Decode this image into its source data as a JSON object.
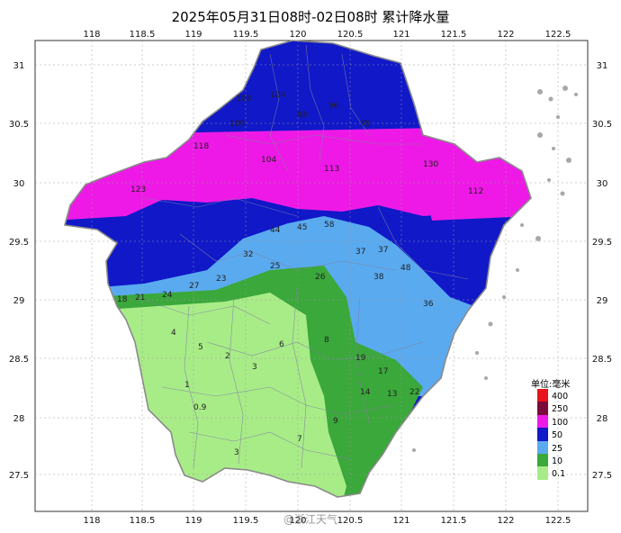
{
  "title": "2025年05月31日08时-02日08时 累计降水量",
  "axes": {
    "lon_ticks": [
      "118",
      "118.5",
      "119",
      "119.5",
      "120",
      "120.5",
      "121",
      "121.5",
      "122",
      "122.5"
    ],
    "lat_ticks": [
      "31",
      "30.5",
      "30",
      "29.5",
      "29",
      "28.5",
      "28",
      "27.5"
    ]
  },
  "legend": {
    "title": "单位:毫米",
    "items": [
      {
        "label": "400",
        "color": "#e8141c"
      },
      {
        "label": "250",
        "color": "#7a0b3a"
      },
      {
        "label": "100",
        "color": "#ee19e6"
      },
      {
        "label": "50",
        "color": "#1018c8"
      },
      {
        "label": "25",
        "color": "#5aaaf0"
      },
      {
        "label": "10",
        "color": "#3aa83a"
      },
      {
        "label": "0.1",
        "color": "#a8ec88"
      }
    ]
  },
  "station_values": {
    "north": [
      "108",
      "104",
      "109",
      "98",
      "96",
      "95",
      "118",
      "104",
      "113",
      "123",
      "130",
      "112"
    ],
    "middle": [
      "44",
      "45",
      "58",
      "37",
      "37",
      "48",
      "32",
      "25",
      "38",
      "36",
      "26",
      "23",
      "27",
      "24",
      "21",
      "18"
    ],
    "south": [
      "4",
      "5",
      "2",
      "3",
      "1",
      "6",
      "8",
      "19",
      "17",
      "14",
      "13",
      "22",
      "9",
      "0.9",
      "7",
      "3"
    ]
  },
  "watermark": "@浙江天气"
}
